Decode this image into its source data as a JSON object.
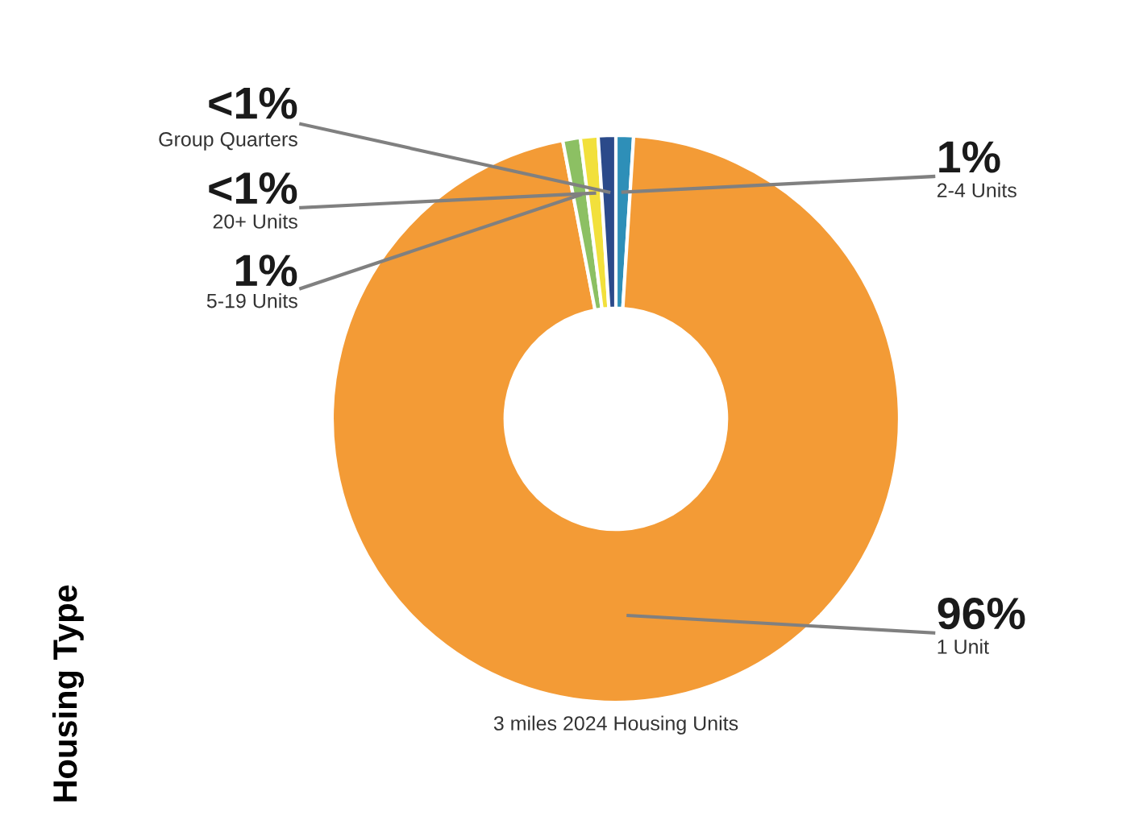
{
  "chart_data": {
    "type": "donut",
    "title": "Housing Type",
    "categories": [
      "2-4 Units",
      "1 Unit",
      "5-19 Units",
      "20+ Units",
      "Group Quarters"
    ],
    "values": [
      1,
      96,
      1,
      1,
      1
    ],
    "value_labels": [
      "1%",
      "96%",
      "1%",
      "<1%",
      "<1%"
    ],
    "colors": [
      "#2e8fb8",
      "#f39b36",
      "#8cc063",
      "#f2e03c",
      "#2b4a8a"
    ],
    "annotations": [
      "3 miles 2024 Housing Units"
    ]
  }
}
